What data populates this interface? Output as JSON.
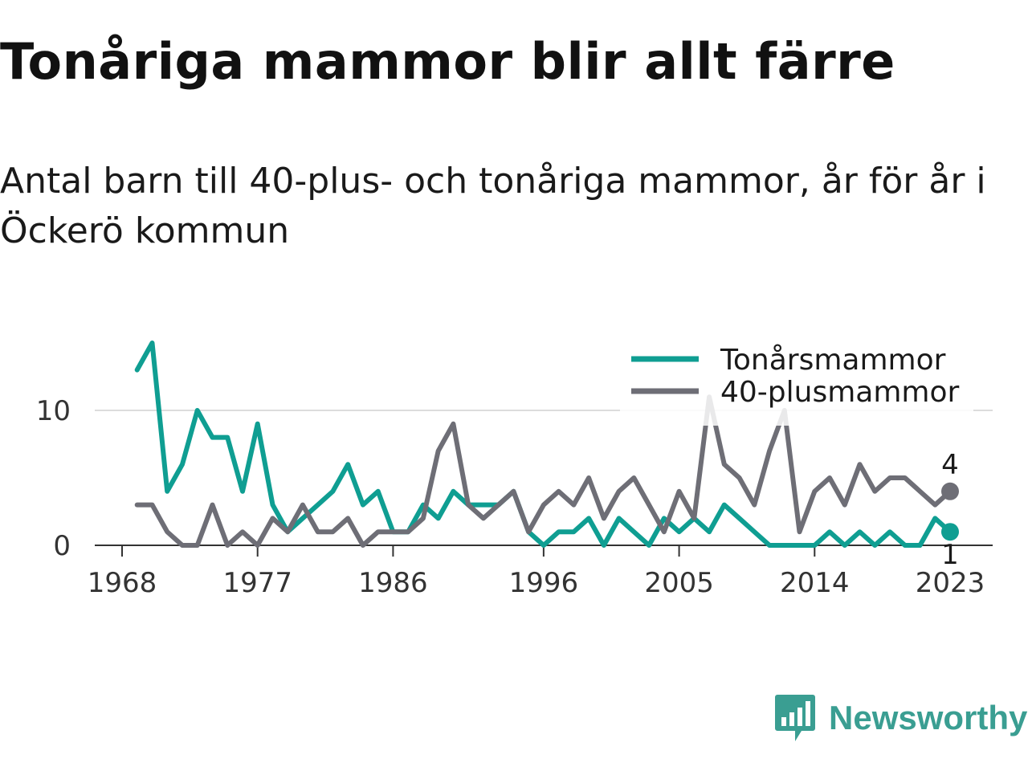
{
  "title": "Tonåriga mammor blir allt färre",
  "subtitle": "Antal barn till 40-plus- och tonåriga mammor, år för år i Öckerö kommun",
  "brand": {
    "name": "Newsworthy",
    "icon": "bar-chart-bubble-icon"
  },
  "chart_data": {
    "type": "line",
    "x": [
      1969,
      1970,
      1971,
      1972,
      1973,
      1974,
      1975,
      1976,
      1977,
      1978,
      1979,
      1980,
      1981,
      1982,
      1983,
      1984,
      1985,
      1986,
      1987,
      1988,
      1989,
      1990,
      1991,
      1992,
      1993,
      1994,
      1995,
      1996,
      1997,
      1998,
      1999,
      2000,
      2001,
      2002,
      2003,
      2004,
      2005,
      2006,
      2007,
      2008,
      2009,
      2010,
      2011,
      2012,
      2013,
      2014,
      2015,
      2016,
      2017,
      2018,
      2019,
      2020,
      2021,
      2022,
      2023
    ],
    "x_ticks": [
      1968,
      1977,
      1986,
      1996,
      2005,
      2014,
      2023
    ],
    "y_ticks": [
      0,
      10
    ],
    "ylim": [
      0,
      15
    ],
    "grid": "horizontal",
    "legend_position": "top-right",
    "series": [
      {
        "name": "Tonårsmammor",
        "color": "#0f9e92",
        "values": [
          13,
          15,
          4,
          6,
          10,
          8,
          8,
          4,
          9,
          3,
          1,
          2,
          3,
          4,
          6,
          3,
          4,
          1,
          1,
          3,
          2,
          4,
          3,
          3,
          3,
          4,
          1,
          0,
          1,
          1,
          2,
          0,
          2,
          1,
          0,
          2,
          1,
          2,
          1,
          3,
          2,
          1,
          0,
          0,
          0,
          0,
          1,
          0,
          1,
          0,
          1,
          0,
          0,
          2,
          1
        ],
        "end_label": "1"
      },
      {
        "name": "40-plusmammor",
        "color": "#6e6e76",
        "values": [
          3,
          3,
          1,
          0,
          0,
          3,
          0,
          1,
          0,
          2,
          1,
          3,
          1,
          1,
          2,
          0,
          1,
          1,
          1,
          2,
          7,
          9,
          3,
          2,
          3,
          4,
          1,
          3,
          4,
          3,
          5,
          2,
          4,
          5,
          3,
          1,
          4,
          2,
          11,
          6,
          5,
          3,
          7,
          10,
          1,
          4,
          5,
          3,
          6,
          4,
          5,
          5,
          4,
          3,
          4
        ],
        "end_label": "4"
      }
    ]
  }
}
